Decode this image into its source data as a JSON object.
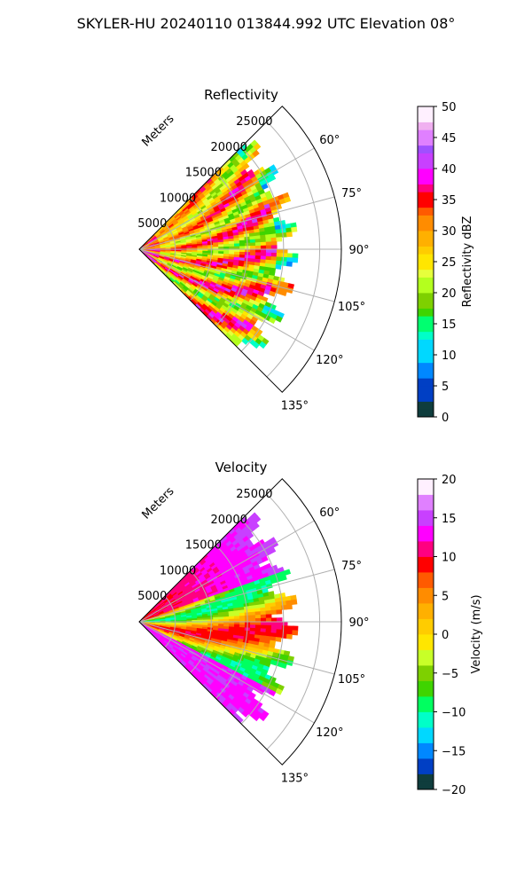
{
  "figure_title": "SKYLER-HU  20240110  013844.992 UTC Elevation 08°",
  "chart_data": [
    {
      "type": "heatmap",
      "projection": "polar-sector",
      "title": "Reflectivity",
      "radial_label": "Meters",
      "radial_ticks": [
        5000,
        10000,
        15000,
        20000,
        25000
      ],
      "radial_max": 28000,
      "angle_range_deg": [
        45,
        135
      ],
      "angle_ticks": [
        60,
        75,
        90,
        105,
        120,
        135
      ],
      "angle_tick_labels": [
        "60°",
        "75°",
        "90°",
        "105°",
        "120°",
        "135°"
      ],
      "data_extent_m": 22000,
      "grid": true,
      "colorbar": {
        "label": "Reflectivity dBZ",
        "min": 0,
        "max": 50,
        "ticks": [
          0,
          5,
          10,
          15,
          20,
          25,
          30,
          35,
          40,
          45,
          50
        ],
        "tick_labels": [
          "0",
          "5",
          "10",
          "15",
          "20",
          "25",
          "30",
          "35",
          "40",
          "45",
          "50"
        ],
        "stops": [
          [
            0,
            "#0b0b5e"
          ],
          [
            3,
            "#0f3d3d"
          ],
          [
            6,
            "#003fc4"
          ],
          [
            9,
            "#0088ff"
          ],
          [
            12,
            "#00d8ff"
          ],
          [
            14,
            "#00ffc8"
          ],
          [
            16,
            "#00ff70"
          ],
          [
            18,
            "#3fd400"
          ],
          [
            20,
            "#7ed000"
          ],
          [
            22,
            "#b4ff1e"
          ],
          [
            24,
            "#e6ff3c"
          ],
          [
            26,
            "#ffe600"
          ],
          [
            28,
            "#ffcc00"
          ],
          [
            30,
            "#ffb000"
          ],
          [
            32,
            "#ff8c00"
          ],
          [
            34,
            "#ff5a00"
          ],
          [
            36,
            "#ff0000"
          ],
          [
            38,
            "#ff0080"
          ],
          [
            40,
            "#ff00ff"
          ],
          [
            42,
            "#c840ff"
          ],
          [
            44,
            "#a050ff"
          ],
          [
            46,
            "#e080ff"
          ],
          [
            48,
            "#f0b0f0"
          ],
          [
            50,
            "#fff0ff"
          ]
        ]
      },
      "field_description": "Mostly 25-35 dBZ with embedded 35-40 dBZ cores"
    },
    {
      "type": "heatmap",
      "projection": "polar-sector",
      "title": "Velocity",
      "radial_label": "Meters",
      "radial_ticks": [
        5000,
        10000,
        15000,
        20000,
        25000
      ],
      "radial_max": 28000,
      "angle_range_deg": [
        45,
        135
      ],
      "angle_ticks": [
        60,
        75,
        90,
        105,
        120,
        135
      ],
      "angle_tick_labels": [
        "60°",
        "75°",
        "90°",
        "105°",
        "120°",
        "135°"
      ],
      "data_extent_m": 22000,
      "grid": true,
      "colorbar": {
        "label": "Velocity (m/s)",
        "min": -20,
        "max": 20,
        "ticks": [
          -20,
          -15,
          -10,
          -5,
          0,
          5,
          10,
          15,
          20
        ],
        "tick_labels": [
          "−20",
          "−15",
          "−10",
          "−5",
          "0",
          "5",
          "10",
          "15",
          "20"
        ],
        "stops": [
          [
            -20,
            "#0b0b5e"
          ],
          [
            -18,
            "#0f3d3d"
          ],
          [
            -16,
            "#003fc4"
          ],
          [
            -14,
            "#0088ff"
          ],
          [
            -12,
            "#00d8ff"
          ],
          [
            -10,
            "#00ffc8"
          ],
          [
            -8,
            "#00ff60"
          ],
          [
            -6,
            "#3fd400"
          ],
          [
            -4,
            "#7ed000"
          ],
          [
            -2,
            "#c8ff28"
          ],
          [
            0,
            "#ffe600"
          ],
          [
            2,
            "#ffcc00"
          ],
          [
            4,
            "#ffb000"
          ],
          [
            6,
            "#ff8c00"
          ],
          [
            8,
            "#ff5a00"
          ],
          [
            10,
            "#ff0000"
          ],
          [
            12,
            "#ff0080"
          ],
          [
            14,
            "#ff00ff"
          ],
          [
            16,
            "#c840ff"
          ],
          [
            18,
            "#e080ff"
          ],
          [
            20,
            "#fff0ff"
          ]
        ]
      },
      "field_description": "Alternating radial bands from -12 to +15 m/s"
    }
  ]
}
